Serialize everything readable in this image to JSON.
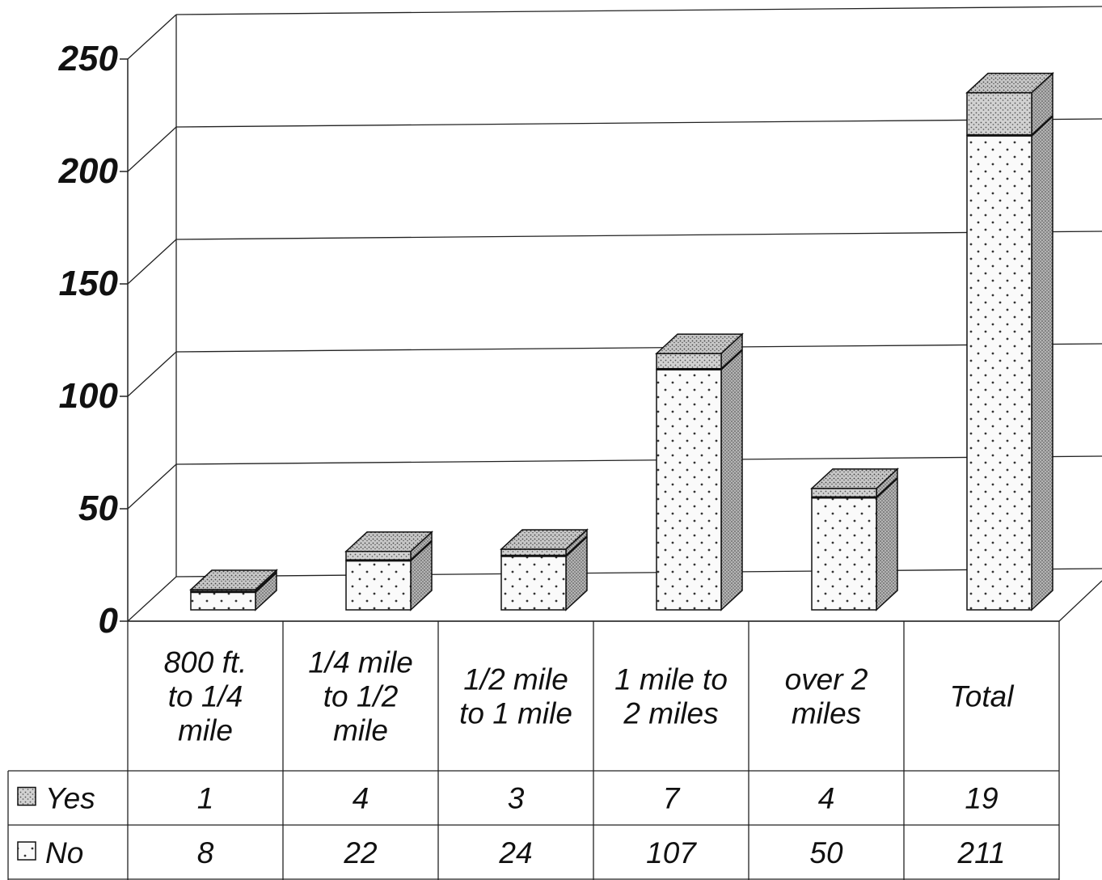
{
  "chart_data": {
    "type": "bar",
    "stacked": true,
    "three_d": true,
    "categories": [
      "800 ft. to 1/4 mile",
      "1/4 mile to 1/2 mile",
      "1/2 mile to 1 mile",
      "1 mile to 2 miles",
      "over 2 miles",
      "Total"
    ],
    "category_lines": [
      [
        "800 ft.",
        "to 1/4",
        "mile"
      ],
      [
        "1/4 mile",
        "to 1/2",
        "mile"
      ],
      [
        "1/2 mile",
        "to 1 mile"
      ],
      [
        "1 mile to",
        "2 miles"
      ],
      [
        "over 2",
        "miles"
      ],
      [
        "Total"
      ]
    ],
    "series": [
      {
        "name": "Yes",
        "values": [
          1,
          4,
          3,
          7,
          4,
          19
        ]
      },
      {
        "name": "No",
        "values": [
          8,
          22,
          24,
          107,
          50,
          211
        ]
      }
    ],
    "yticks": [
      "0",
      "50",
      "100",
      "150",
      "200",
      "250"
    ],
    "ylim": [
      0,
      250
    ],
    "grid": true,
    "legend": "data-table-left",
    "colors": {
      "yes": "#cfcfcf",
      "no": "#f4f4f4",
      "side": "#bdbdbd",
      "line": "#111111",
      "grid": "#222222"
    }
  }
}
